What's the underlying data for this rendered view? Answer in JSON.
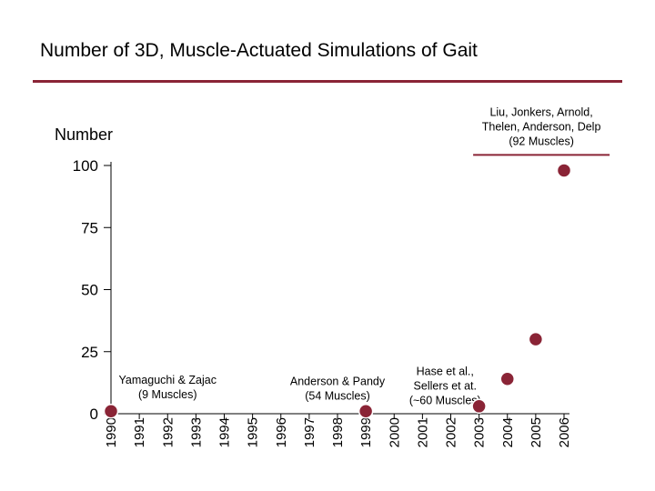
{
  "slide": {
    "title": "Number of 3D, Muscle-Actuated Simulations of Gait",
    "accent_color": "#8a2436"
  },
  "chart_data": {
    "type": "scatter",
    "title": "",
    "xlabel": "",
    "ylabel": "Number",
    "xlim": [
      1990,
      2006
    ],
    "ylim": [
      0,
      100
    ],
    "y_ticks": [
      0,
      25,
      50,
      75,
      100
    ],
    "x_ticks": [
      "1990",
      "1991",
      "1992",
      "1993",
      "1994",
      "1995",
      "1996",
      "1997",
      "1998",
      "1999",
      "2000",
      "2001",
      "2002",
      "2003",
      "2004",
      "2005",
      "2006"
    ],
    "grid": false,
    "legend": "none",
    "marker_color": "#8a2436",
    "points": [
      {
        "x": 1990,
        "y": 1
      },
      {
        "x": 1999,
        "y": 1
      },
      {
        "x": 2003,
        "y": 3
      },
      {
        "x": 2004,
        "y": 14
      },
      {
        "x": 2005,
        "y": 30
      },
      {
        "x": 2006,
        "y": 98
      }
    ],
    "annotations": [
      {
        "x": 1992,
        "y": 12,
        "lines": [
          "Yamaguchi & Zajac",
          "(9 Muscles)"
        ]
      },
      {
        "x": 1998,
        "y": 11.5,
        "lines": [
          "Anderson & Pandy",
          "(54 Muscles)"
        ]
      },
      {
        "x": 2001.8,
        "y": 15.5,
        "lines": [
          "Hase et al.,",
          "Sellers et at.",
          "(~60 Muscles)"
        ]
      },
      {
        "x": 2005.2,
        "y": 120,
        "lines": [
          "Liu, Jonkers, Arnold,",
          "Thelen, Anderson, Delp",
          "(92 Muscles)"
        ],
        "underline": true
      }
    ]
  }
}
